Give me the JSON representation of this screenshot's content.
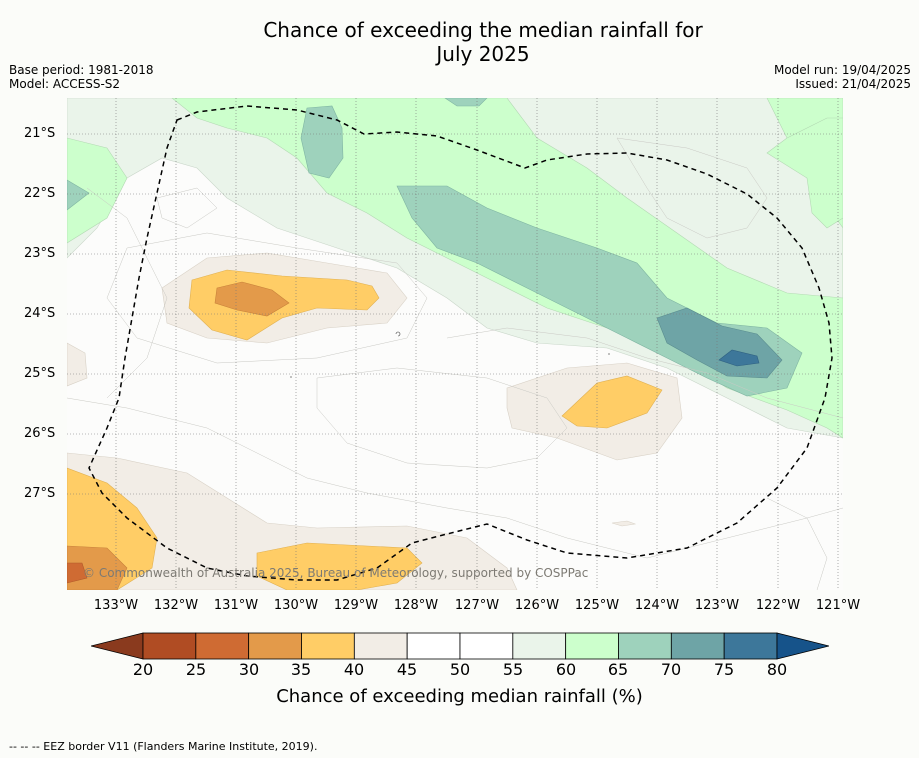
{
  "title_line1": "Chance of exceeding the median rainfall for",
  "title_line2": "July 2025",
  "base_period": "Base period: 1981-2018",
  "model": "Model: ACCESS-S2",
  "model_run": "Model run: 19/04/2025",
  "issued": "Issued: 21/04/2025",
  "latitudes": [
    "21°S",
    "22°S",
    "23°S",
    "24°S",
    "25°S",
    "26°S",
    "27°S"
  ],
  "longitudes": [
    "133°W",
    "132°W",
    "131°W",
    "130°W",
    "129°W",
    "128°W",
    "127°W",
    "126°W",
    "125°W",
    "124°W",
    "123°W",
    "122°W",
    "121°W"
  ],
  "copyright": "© Commonwealth of Australia 2025, Bureau of Meteorology, supported by COSPPac",
  "colorbar": {
    "ticks": [
      "20",
      "25",
      "30",
      "35",
      "40",
      "45",
      "50",
      "55",
      "60",
      "65",
      "70",
      "75",
      "80"
    ],
    "label": "Chance of exceeding median rainfall (%)",
    "colors": [
      "#8a3a1e",
      "#b04c23",
      "#cf6b33",
      "#e39a4a",
      "#ffcd66",
      "#f2ede6",
      "#ffffff",
      "#ffffff",
      "#eaf4ea",
      "#ccffcc",
      "#9ed2bc",
      "#6ea4a6",
      "#3d779a",
      "#16538a"
    ]
  },
  "footer": "--  --  -- EEZ border V11 (Flanders Marine Institute, 2019)."
}
